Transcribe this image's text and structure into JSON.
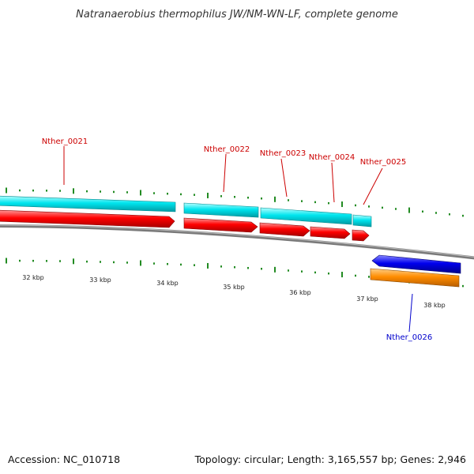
{
  "title": "Natranaerobius thermophilus JW/NM-WN-LF, complete genome",
  "footer": {
    "accession": "Accession: NC_010718",
    "summary": "Topology: circular; Length: 3,165,557 bp; Genes: 2,946"
  },
  "colors": {
    "forward_gene": "#ff0000",
    "forward_cds_band": "#00e5ee",
    "reverse_gene": "#0000ee",
    "reverse_cds_band": "#ff8c00",
    "forward_label": "#cc0000",
    "reverse_label": "#0000cc",
    "backbone": "#808080",
    "tick": "#228b22"
  },
  "scale_labels": [
    "32 kbp",
    "33 kbp",
    "34 kbp",
    "35 kbp",
    "36 kbp",
    "37 kbp",
    "38 kbp"
  ],
  "genes": [
    {
      "name": "Nther_0021",
      "strand": "+"
    },
    {
      "name": "Nther_0022",
      "strand": "+"
    },
    {
      "name": "Nther_0023",
      "strand": "+"
    },
    {
      "name": "Nther_0024",
      "strand": "+"
    },
    {
      "name": "Nther_0025",
      "strand": "+"
    },
    {
      "name": "Nther_0026",
      "strand": "-"
    }
  ]
}
